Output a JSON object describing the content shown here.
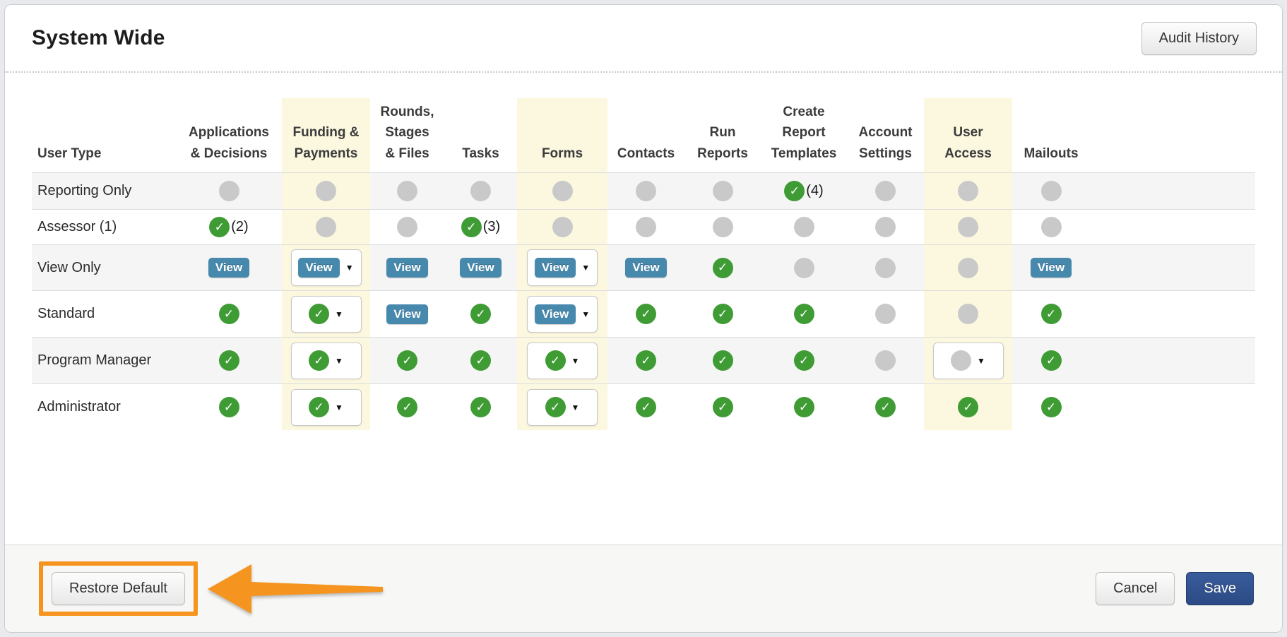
{
  "header": {
    "title": "System Wide",
    "audit_button": "Audit History"
  },
  "table": {
    "labels": {
      "view": "View"
    },
    "icons": {
      "granted_check": "✓",
      "caret": "▼"
    },
    "columns": [
      {
        "id": "user-type",
        "label": "User Type",
        "highlight": false
      },
      {
        "id": "applications-decisions",
        "label": "Applications\n& Decisions",
        "highlight": false
      },
      {
        "id": "funding-payments",
        "label": "Funding &\nPayments",
        "highlight": true
      },
      {
        "id": "rounds-stages-files",
        "label": "Rounds,\nStages\n& Files",
        "highlight": false
      },
      {
        "id": "tasks",
        "label": "Tasks",
        "highlight": false
      },
      {
        "id": "forms",
        "label": "Forms",
        "highlight": true
      },
      {
        "id": "contacts",
        "label": "Contacts",
        "highlight": false
      },
      {
        "id": "run-reports",
        "label": "Run\nReports",
        "highlight": false
      },
      {
        "id": "create-report-templates",
        "label": "Create\nReport\nTemplates",
        "highlight": false
      },
      {
        "id": "account-settings",
        "label": "Account\nSettings",
        "highlight": false
      },
      {
        "id": "user-access",
        "label": "User\nAccess",
        "highlight": true
      },
      {
        "id": "mailouts",
        "label": "Mailouts",
        "highlight": false
      }
    ],
    "rows": [
      {
        "id": "reporting-only",
        "label": "Reporting Only",
        "cells": [
          {
            "type": "none"
          },
          {
            "type": "none"
          },
          {
            "type": "none"
          },
          {
            "type": "none"
          },
          {
            "type": "none"
          },
          {
            "type": "none"
          },
          {
            "type": "none"
          },
          {
            "type": "granted",
            "note": "(4)"
          },
          {
            "type": "none"
          },
          {
            "type": "none"
          },
          {
            "type": "none"
          }
        ]
      },
      {
        "id": "assessor",
        "label": "Assessor (1)",
        "cells": [
          {
            "type": "granted",
            "note": "(2)"
          },
          {
            "type": "none"
          },
          {
            "type": "none"
          },
          {
            "type": "granted",
            "note": "(3)"
          },
          {
            "type": "none"
          },
          {
            "type": "none"
          },
          {
            "type": "none"
          },
          {
            "type": "none"
          },
          {
            "type": "none"
          },
          {
            "type": "none"
          },
          {
            "type": "none"
          }
        ]
      },
      {
        "id": "view-only",
        "label": "View Only",
        "cells": [
          {
            "type": "view"
          },
          {
            "type": "select",
            "inner": "view"
          },
          {
            "type": "view"
          },
          {
            "type": "view"
          },
          {
            "type": "select",
            "inner": "view"
          },
          {
            "type": "view"
          },
          {
            "type": "granted"
          },
          {
            "type": "none"
          },
          {
            "type": "none"
          },
          {
            "type": "none"
          },
          {
            "type": "view"
          }
        ]
      },
      {
        "id": "standard",
        "label": "Standard",
        "cells": [
          {
            "type": "granted"
          },
          {
            "type": "select",
            "inner": "granted"
          },
          {
            "type": "view"
          },
          {
            "type": "granted"
          },
          {
            "type": "select",
            "inner": "view"
          },
          {
            "type": "granted"
          },
          {
            "type": "granted"
          },
          {
            "type": "granted"
          },
          {
            "type": "none"
          },
          {
            "type": "none"
          },
          {
            "type": "granted"
          }
        ]
      },
      {
        "id": "program-manager",
        "label": "Program Manager",
        "cells": [
          {
            "type": "granted"
          },
          {
            "type": "select",
            "inner": "granted"
          },
          {
            "type": "granted"
          },
          {
            "type": "granted"
          },
          {
            "type": "select",
            "inner": "granted"
          },
          {
            "type": "granted"
          },
          {
            "type": "granted"
          },
          {
            "type": "granted"
          },
          {
            "type": "none"
          },
          {
            "type": "select",
            "inner": "none"
          },
          {
            "type": "granted"
          }
        ]
      },
      {
        "id": "administrator",
        "label": "Administrator",
        "cells": [
          {
            "type": "granted"
          },
          {
            "type": "select",
            "inner": "granted"
          },
          {
            "type": "granted"
          },
          {
            "type": "granted"
          },
          {
            "type": "select",
            "inner": "granted"
          },
          {
            "type": "granted"
          },
          {
            "type": "granted"
          },
          {
            "type": "granted"
          },
          {
            "type": "granted"
          },
          {
            "type": "granted"
          },
          {
            "type": "granted"
          }
        ]
      }
    ]
  },
  "footer": {
    "restore_button": "Restore Default",
    "cancel_button": "Cancel",
    "save_button": "Save"
  },
  "colors": {
    "highlight_yellow": "#fbf8df",
    "granted_green": "#3f9c35",
    "disabled_gray": "#c9c9c9",
    "view_blue": "#4788ad",
    "annotation_orange": "#f5941f",
    "save_blue": "#2b4a85",
    "row_stripe": "#f5f5f5"
  }
}
